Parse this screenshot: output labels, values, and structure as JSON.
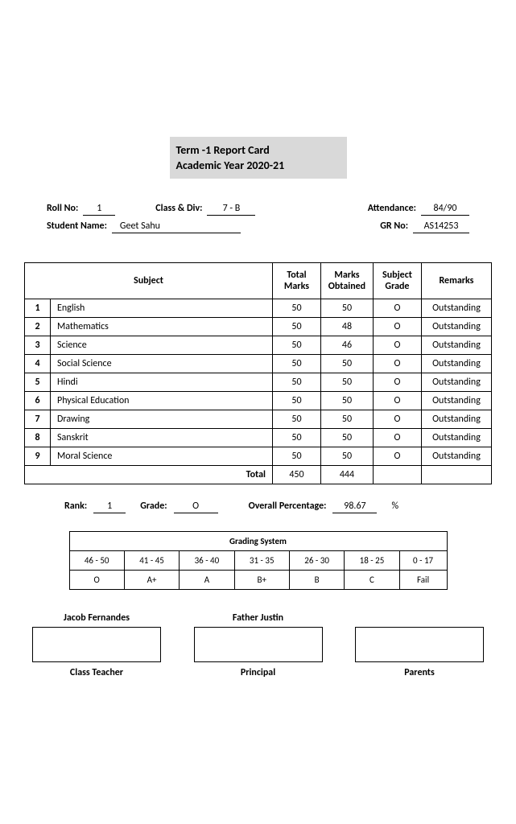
{
  "title": {
    "line1": "Term -1  Report Card",
    "line2": "Academic Year 2020-21"
  },
  "info": {
    "roll_lbl": "Roll No:",
    "roll": "1",
    "classdiv_lbl": "Class & Div:",
    "classdiv": "7 - B",
    "attendance_lbl": "Attendance:",
    "attendance": "84/90",
    "name_lbl": "Student Name:",
    "name": "Geet Sahu",
    "gr_lbl": "GR No:",
    "gr": "AS14253"
  },
  "marks": {
    "headers": {
      "subject": "Subject",
      "total": "Total Marks",
      "obtained": "Marks Obtained",
      "grade": "Subject Grade",
      "remarks": "Remarks"
    },
    "rows": [
      {
        "n": "1",
        "s": "English",
        "t": "50",
        "o": "50",
        "g": "O",
        "r": "Outstanding"
      },
      {
        "n": "2",
        "s": "Mathematics",
        "t": "50",
        "o": "48",
        "g": "O",
        "r": "Outstanding"
      },
      {
        "n": "3",
        "s": "Science",
        "t": "50",
        "o": "46",
        "g": "O",
        "r": "Outstanding"
      },
      {
        "n": "4",
        "s": "Social Science",
        "t": "50",
        "o": "50",
        "g": "O",
        "r": "Outstanding"
      },
      {
        "n": "5",
        "s": "Hindi",
        "t": "50",
        "o": "50",
        "g": "O",
        "r": "Outstanding"
      },
      {
        "n": "6",
        "s": "Physical Education",
        "t": "50",
        "o": "50",
        "g": "O",
        "r": "Outstanding"
      },
      {
        "n": "7",
        "s": "Drawing",
        "t": "50",
        "o": "50",
        "g": "O",
        "r": "Outstanding"
      },
      {
        "n": "8",
        "s": "Sanskrit",
        "t": "50",
        "o": "50",
        "g": "O",
        "r": "Outstanding"
      },
      {
        "n": "9",
        "s": "Moral Science",
        "t": "50",
        "o": "50",
        "g": "O",
        "r": "Outstanding"
      }
    ],
    "total_lbl": "Total",
    "total_t": "450",
    "total_o": "444"
  },
  "summary": {
    "rank_lbl": "Rank:",
    "rank": "1",
    "grade_lbl": "Grade:",
    "grade": "O",
    "pct_lbl": "Overall Percentage:",
    "pct": "98.67",
    "pct_unit": "%"
  },
  "grading": {
    "title": "Grading System",
    "ranges": [
      "46 - 50",
      "41 - 45",
      "36 - 40",
      "31 - 35",
      "26 - 30",
      "18 - 25",
      "0 - 17"
    ],
    "grades": [
      "O",
      "A+",
      "A",
      "B+",
      "B",
      "C",
      "Fail"
    ]
  },
  "signatures": [
    {
      "name": "Jacob Fernandes",
      "role": "Class Teacher"
    },
    {
      "name": "Father Justin",
      "role": "Principal"
    },
    {
      "name": "",
      "role": "Parents"
    }
  ]
}
